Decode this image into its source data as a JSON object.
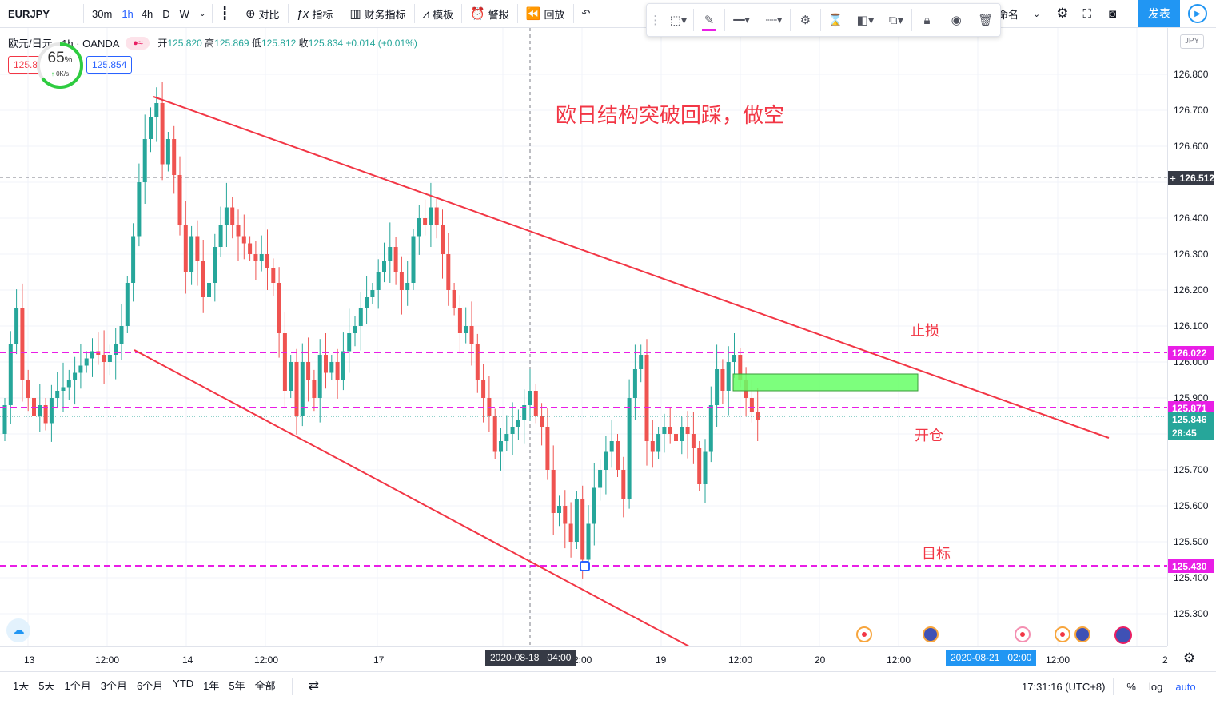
{
  "toolbar": {
    "symbol": "EURJPY",
    "intervals": [
      "30m",
      "1h",
      "4h",
      "D",
      "W"
    ],
    "active_interval": "1h",
    "compare": "对比",
    "indicators": "指标",
    "financials": "财务指标",
    "templates": "模板",
    "alerts": "警报",
    "replay": "回放",
    "layout_name": "命名",
    "publish": "发表"
  },
  "legend": {
    "symbol": "欧元/日元 · 1h · OANDA",
    "open_label": "开",
    "open": "125.820",
    "high_label": "高",
    "high": "125.869",
    "low_label": "低",
    "low": "125.812",
    "close_label": "收",
    "close": "125.834",
    "change": "+0.014 (+0.01%)",
    "bid": "125.8",
    "ask": "125.854"
  },
  "speed_widget": {
    "percent": "65",
    "unit": "%",
    "rate": "0K/s"
  },
  "annotations": {
    "title": "欧日结构突破回踩，做空",
    "stop_loss": "止损",
    "entry": "开仓",
    "target": "目标"
  },
  "price_axis": {
    "currency": "JPY",
    "labels": [
      "126.800",
      "126.700",
      "126.600",
      "126.400",
      "126.300",
      "126.200",
      "126.100",
      "126.000",
      "125.900",
      "125.700",
      "125.600",
      "125.500",
      "125.400",
      "125.300"
    ],
    "crosshair_price": "126.512",
    "stop_price": "126.022",
    "entry_price": "125.871",
    "last_price": "125.846",
    "countdown": "28:45",
    "target_price": "125.430"
  },
  "time_axis": {
    "labels": [
      "13",
      "12:00",
      "14",
      "12:00",
      "17",
      "2:00",
      "19",
      "12:00",
      "20",
      "12:00",
      "12:00",
      "2"
    ],
    "crosshair_time": "2020-08-18   04:00",
    "selection_time": "2020-08-21   02:00"
  },
  "bottom_bar": {
    "ranges": [
      "1天",
      "5天",
      "1个月",
      "3个月",
      "6个月",
      "YTD",
      "1年",
      "5年",
      "全部"
    ],
    "clock": "17:31:16 (UTC+8)",
    "percent": "%",
    "log": "log",
    "auto": "auto"
  },
  "chart_data": {
    "type": "candlestick",
    "symbol": "EURJPY",
    "timeframe": "1h",
    "y_range": [
      125.22,
      126.95
    ],
    "horizontal_levels": [
      {
        "name": "止损",
        "price": 126.022,
        "color": "#e91ee6"
      },
      {
        "name": "开仓",
        "price": 125.871,
        "color": "#e91ee6"
      },
      {
        "name": "目标",
        "price": 125.43,
        "color": "#e91ee6"
      }
    ],
    "colors": {
      "up": "#26a69a",
      "down": "#ef5350",
      "trendline": "#f23645",
      "zone": "#66ff66"
    }
  }
}
